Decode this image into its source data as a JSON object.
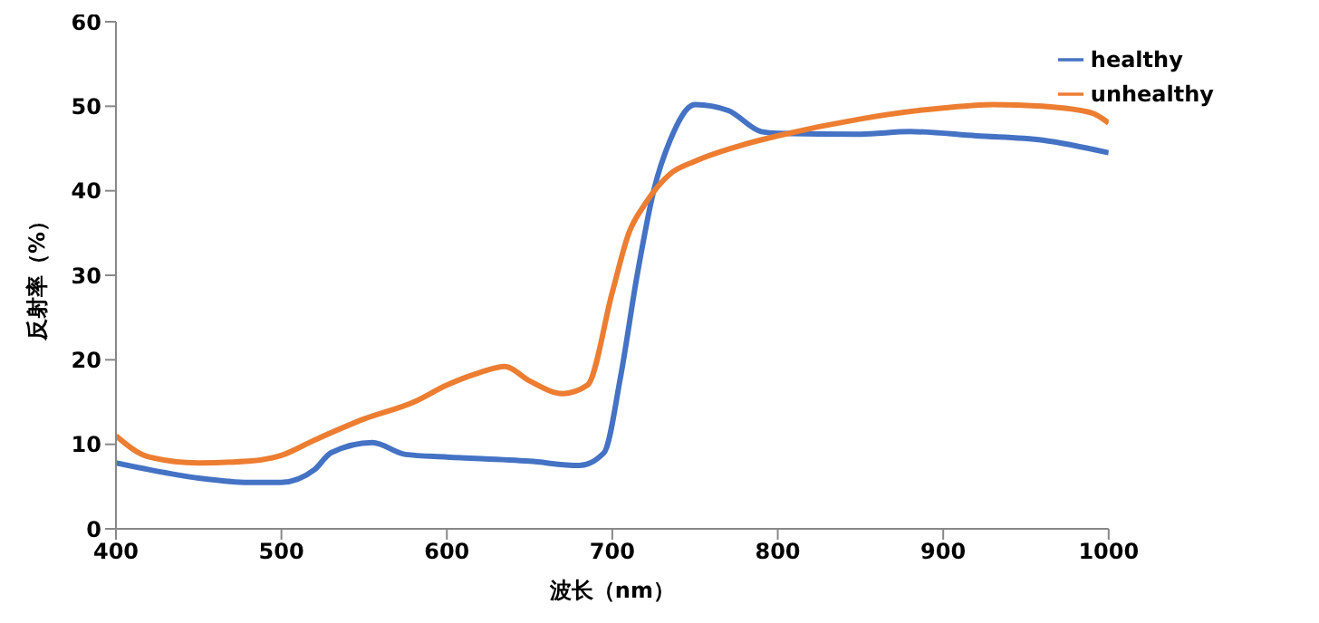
{
  "chart_data": {
    "type": "line",
    "xlabel": "波长（nm）",
    "ylabel": "反射率（%）",
    "xlim": [
      400,
      1000
    ],
    "xticks": [
      400,
      500,
      600,
      700,
      800,
      900,
      1000
    ],
    "ylim": [
      0,
      60
    ],
    "yticks": [
      0,
      10,
      20,
      30,
      40,
      50,
      60
    ],
    "grid": false,
    "legend": "top right",
    "marker": "none",
    "line_style": "solid",
    "series": [
      {
        "name": "healthy",
        "color": "#4472c4",
        "x": [
          400,
          420,
          450,
          480,
          500,
          520,
          530,
          555,
          575,
          600,
          650,
          680,
          695,
          705,
          715,
          725,
          735,
          750,
          770,
          790,
          800,
          850,
          880,
          920,
          960,
          1000
        ],
        "values": [
          7.8,
          7,
          6,
          5.5,
          5.5,
          7,
          9,
          10.2,
          8.8,
          8.5,
          8,
          7.5,
          9,
          18,
          30,
          40,
          46,
          50.2,
          49.5,
          47,
          46.8,
          46.7,
          47,
          46.5,
          46,
          44.5
        ]
      },
      {
        "name": "unhealthy",
        "color": "#ed7d31",
        "x": [
          400,
          420,
          450,
          480,
          500,
          520,
          550,
          580,
          600,
          620,
          635,
          650,
          670,
          685,
          700,
          710,
          720,
          735,
          750,
          780,
          800,
          850,
          900,
          930,
          960,
          990,
          1000
        ],
        "values": [
          11,
          8.5,
          7.8,
          8,
          8.7,
          10.5,
          13,
          15,
          17,
          18.5,
          19.2,
          17.5,
          16,
          17,
          28,
          35,
          38.5,
          42,
          43.5,
          45.5,
          46.5,
          48.5,
          49.8,
          50.2,
          50,
          49.2,
          48
        ]
      }
    ]
  }
}
